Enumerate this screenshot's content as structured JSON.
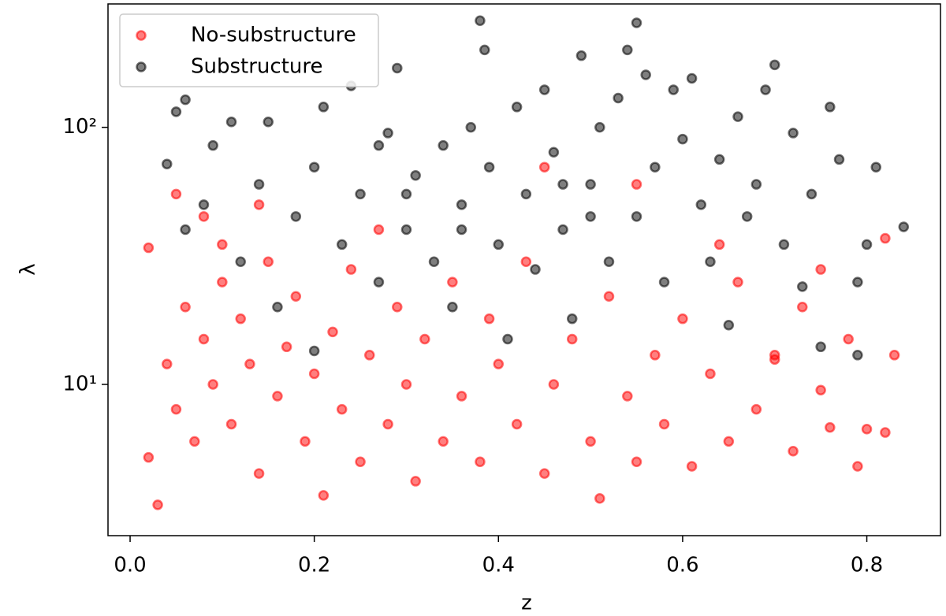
{
  "chart_data": {
    "type": "scatter",
    "xlabel": "z",
    "ylabel": "λ",
    "xlim": [
      -0.024,
      0.88
    ],
    "xticks": [
      {
        "value": 0,
        "label": "0.0"
      },
      0.2,
      0.4,
      0.6,
      0.8
    ],
    "ylim": [
      2.58,
      302
    ],
    "yticks": [
      {
        "value": 10,
        "label": "10¹"
      },
      {
        "value": 100,
        "label": "10²"
      }
    ],
    "ylog": true,
    "legend": "upper-left",
    "series": [
      {
        "name": "No-substructure",
        "color": "#ff0000",
        "x": [
          0.02,
          0.03,
          0.02,
          0.04,
          0.05,
          0.06,
          0.07,
          0.08,
          0.09,
          0.1,
          0.11,
          0.12,
          0.13,
          0.14,
          0.15,
          0.16,
          0.17,
          0.18,
          0.19,
          0.2,
          0.21,
          0.22,
          0.23,
          0.24,
          0.25,
          0.26,
          0.27,
          0.28,
          0.29,
          0.3,
          0.31,
          0.32,
          0.34,
          0.35,
          0.36,
          0.38,
          0.39,
          0.4,
          0.42,
          0.43,
          0.45,
          0.46,
          0.48,
          0.5,
          0.51,
          0.52,
          0.54,
          0.55,
          0.57,
          0.58,
          0.6,
          0.61,
          0.63,
          0.65,
          0.66,
          0.68,
          0.7,
          0.72,
          0.73,
          0.75,
          0.76,
          0.78,
          0.79,
          0.8,
          0.82,
          0.83,
          0.82,
          0.75,
          0.05,
          0.1,
          0.08,
          0.14,
          0.55,
          0.45,
          0.64,
          0.7
        ],
        "values": [
          34,
          3.4,
          5.2,
          12,
          8,
          20,
          6,
          15,
          10,
          25,
          7,
          18,
          12,
          4.5,
          30,
          9,
          14,
          22,
          6,
          11,
          3.7,
          16,
          8,
          28,
          5,
          13,
          40,
          7,
          20,
          10,
          4.2,
          15,
          6,
          25,
          9,
          5,
          18,
          12,
          7,
          30,
          4.5,
          10,
          15,
          6,
          3.6,
          22,
          9,
          5,
          13,
          7,
          18,
          4.8,
          11,
          6,
          25,
          8,
          13,
          5.5,
          20,
          9.5,
          6.8,
          15,
          4.8,
          6.7,
          6.5,
          13,
          37,
          28,
          55,
          35,
          45,
          50,
          60,
          70,
          35,
          12.5
        ]
      },
      {
        "name": "Substructure",
        "color": "#000000",
        "x": [
          0.04,
          0.05,
          0.06,
          0.06,
          0.08,
          0.09,
          0.11,
          0.12,
          0.14,
          0.15,
          0.16,
          0.18,
          0.2,
          0.2,
          0.21,
          0.23,
          0.24,
          0.25,
          0.27,
          0.28,
          0.29,
          0.3,
          0.31,
          0.33,
          0.34,
          0.35,
          0.36,
          0.37,
          0.38,
          0.385,
          0.39,
          0.4,
          0.41,
          0.42,
          0.43,
          0.44,
          0.45,
          0.46,
          0.47,
          0.48,
          0.49,
          0.5,
          0.51,
          0.52,
          0.53,
          0.54,
          0.55,
          0.55,
          0.56,
          0.57,
          0.58,
          0.59,
          0.6,
          0.61,
          0.62,
          0.63,
          0.64,
          0.65,
          0.66,
          0.67,
          0.68,
          0.7,
          0.71,
          0.72,
          0.73,
          0.74,
          0.75,
          0.76,
          0.77,
          0.79,
          0.79,
          0.8,
          0.81,
          0.84,
          0.69,
          0.27,
          0.47,
          0.36,
          0.3,
          0.5
        ],
        "values": [
          72,
          115,
          128,
          40,
          50,
          85,
          105,
          30,
          60,
          105,
          20,
          45,
          13.5,
          70,
          120,
          35,
          145,
          55,
          25,
          95,
          170,
          40,
          65,
          30,
          85,
          20,
          50,
          100,
          260,
          200,
          70,
          35,
          15,
          120,
          55,
          28,
          140,
          80,
          40,
          18,
          190,
          60,
          100,
          30,
          130,
          200,
          255,
          45,
          160,
          70,
          25,
          140,
          90,
          155,
          50,
          30,
          75,
          17,
          110,
          45,
          60,
          175,
          35,
          95,
          24,
          55,
          14,
          120,
          75,
          13,
          25,
          35,
          70,
          41,
          140,
          85,
          60,
          40,
          55,
          45
        ]
      }
    ]
  }
}
